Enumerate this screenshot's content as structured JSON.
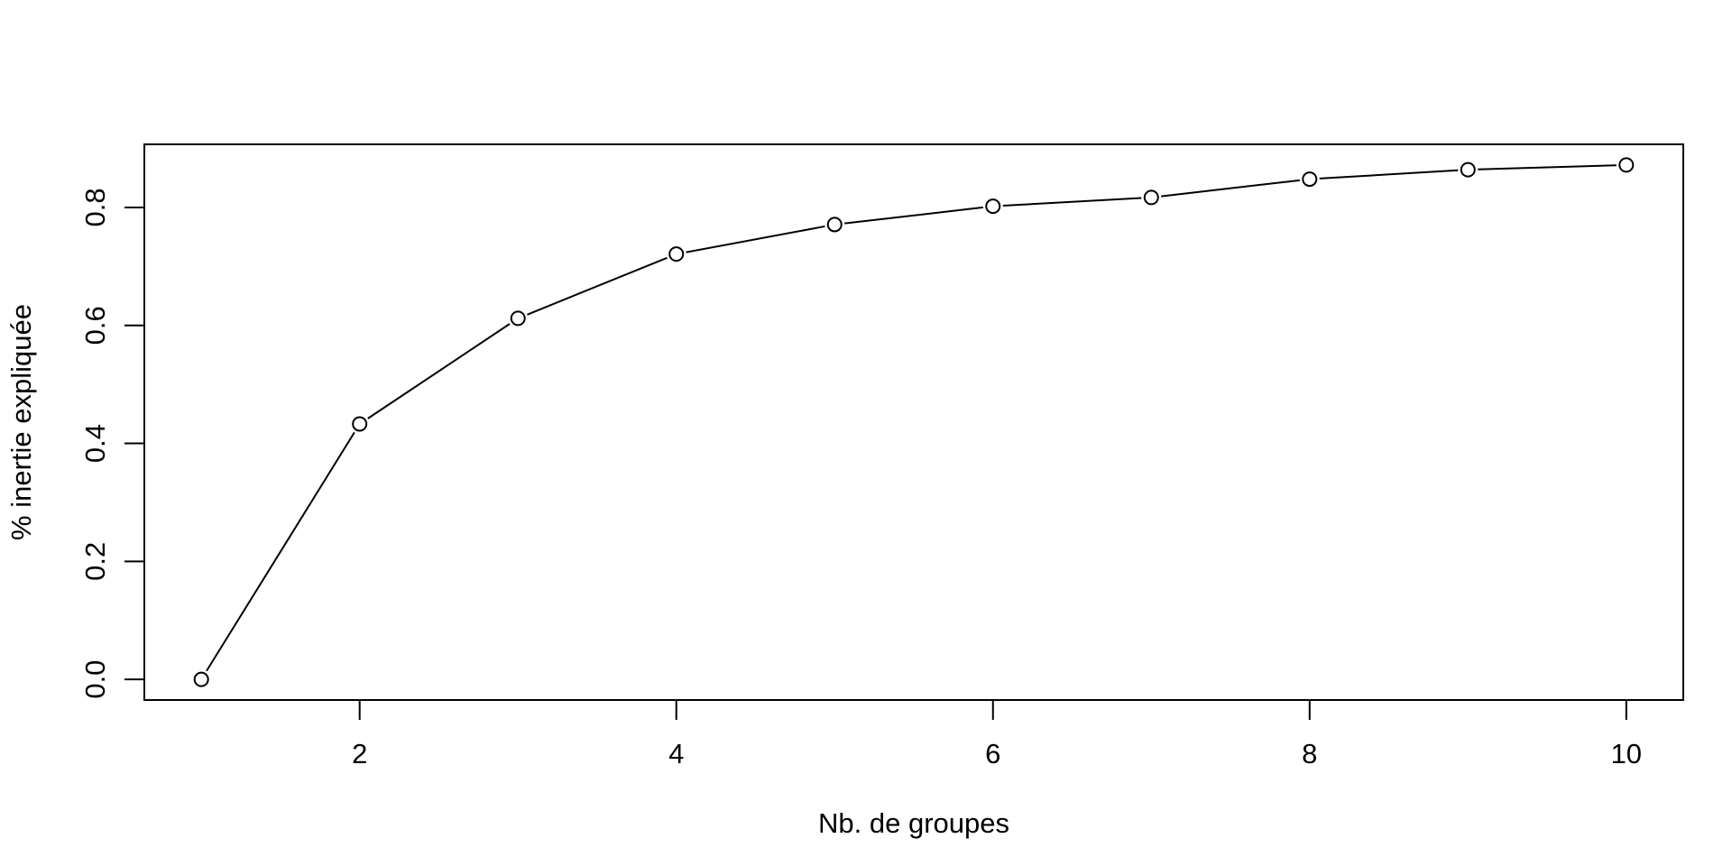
{
  "chart_data": {
    "type": "line",
    "markers": "open-circle",
    "x": [
      1,
      2,
      3,
      4,
      5,
      6,
      7,
      8,
      9,
      10
    ],
    "y": [
      0.0,
      0.433,
      0.612,
      0.721,
      0.771,
      0.802,
      0.817,
      0.848,
      0.864,
      0.872
    ],
    "xlabel": "Nb. de groupes",
    "ylabel": "% inertie expliquée",
    "xlim": [
      0.64,
      10.36
    ],
    "ylim": [
      -0.035,
      0.907
    ],
    "xticks": [
      2,
      4,
      6,
      8,
      10
    ],
    "xtick_labels": [
      "2",
      "4",
      "6",
      "8",
      "10"
    ],
    "yticks": [
      0.0,
      0.2,
      0.4,
      0.6,
      0.8
    ],
    "ytick_labels": [
      "0.0",
      "0.2",
      "0.4",
      "0.6",
      "0.8"
    ],
    "grid": false,
    "line_color": "#000000",
    "marker_fill": "#ffffff"
  }
}
